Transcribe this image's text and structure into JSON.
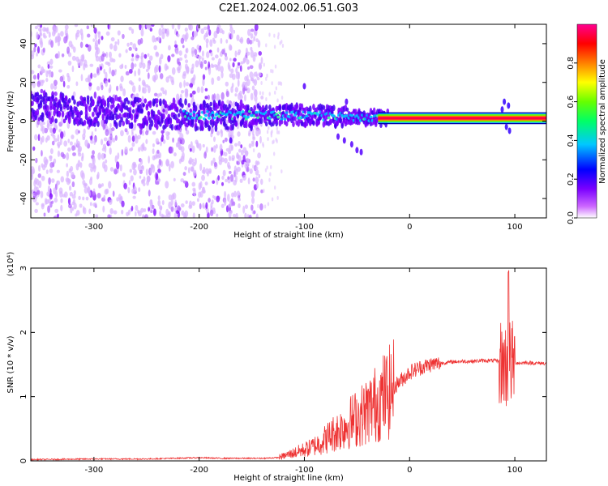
{
  "title": "C2E1.2024.002.06.51.G03",
  "chart_data": [
    {
      "type": "heatmap",
      "title": "",
      "xlabel": "Height of straight line (km)",
      "ylabel": "Frequency (Hz)",
      "xlim": [
        -360,
        130
      ],
      "ylim": [
        -50,
        50
      ],
      "xticks": [
        -300,
        -200,
        -100,
        0,
        100
      ],
      "yticks": [
        -40,
        -20,
        0,
        20,
        40
      ],
      "colorbar": {
        "label": "Normalized spectral amplitude",
        "range": [
          0,
          1
        ],
        "ticks": [
          "0.0",
          "0.2",
          "0.4",
          "0.6",
          "0.8"
        ],
        "tick_values": [
          0.0,
          0.2,
          0.4,
          0.6,
          0.8
        ],
        "colormap": [
          "#ffffff",
          "#cc66ff",
          "#7a00ff",
          "#0000ff",
          "#00c8ff",
          "#00ff66",
          "#66ff00",
          "#ffff00",
          "#ff8000",
          "#ff0000",
          "#ff0090"
        ]
      },
      "ridge": [
        {
          "x": -360,
          "y": 8
        },
        {
          "x": -300,
          "y": 5
        },
        {
          "x": -200,
          "y": 3
        },
        {
          "x": -100,
          "y": 3
        },
        {
          "x": -60,
          "y": 2
        },
        {
          "x": -30,
          "y": 2
        },
        {
          "x": 0,
          "y": 1.5
        },
        {
          "x": 130,
          "y": 1.5
        }
      ]
    },
    {
      "type": "line",
      "title": "",
      "xlabel": "Height of straight line (km)",
      "ylabel": "SNR (10 * v/v)",
      "scale_note": "(x10⁴)",
      "xlim": [
        -360,
        130
      ],
      "ylim": [
        0,
        3
      ],
      "xticks": [
        -300,
        -200,
        -100,
        0,
        100
      ],
      "yticks": [
        0,
        1,
        2,
        3
      ],
      "color": "#ee3333",
      "series": [
        {
          "x": [
            -360,
            -300,
            -250,
            -200,
            -180,
            -160,
            -140,
            -125,
            -115,
            -105,
            -95,
            -85,
            -75,
            -65,
            -55,
            -45,
            -35,
            -25,
            -18,
            -12,
            -5,
            0,
            10,
            20,
            30,
            40,
            50,
            60,
            70,
            80,
            85,
            90,
            93,
            95,
            97,
            100,
            105,
            110,
            120,
            130
          ],
          "values": [
            0.02,
            0.03,
            0.03,
            0.05,
            0.04,
            0.04,
            0.04,
            0.05,
            0.1,
            0.15,
            0.2,
            0.28,
            0.4,
            0.5,
            0.62,
            0.72,
            0.85,
            1.0,
            1.08,
            1.2,
            1.3,
            1.38,
            1.45,
            1.5,
            1.52,
            1.54,
            1.55,
            1.55,
            1.56,
            1.56,
            1.55,
            1.5,
            1.45,
            1.55,
            1.5,
            1.53,
            1.52,
            1.53,
            1.52,
            1.52
          ]
        }
      ]
    }
  ]
}
